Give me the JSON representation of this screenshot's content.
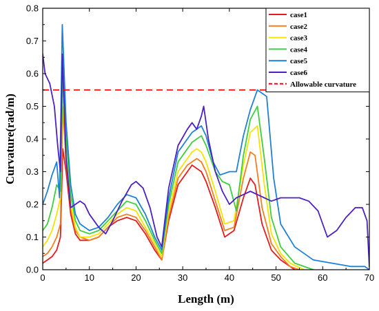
{
  "chart_data": {
    "type": "line",
    "xlabel": "Length (m)",
    "ylabel": "Curvature(rad/m)",
    "xlim": [
      0,
      70
    ],
    "ylim": [
      0,
      0.8
    ],
    "x_ticks": [
      0,
      10,
      20,
      30,
      40,
      50,
      60,
      70
    ],
    "y_ticks": [
      0.0,
      0.1,
      0.2,
      0.3,
      0.4,
      0.5,
      0.6,
      0.7,
      0.8
    ],
    "x_tick_labels": [
      "0",
      "10",
      "20",
      "30",
      "40",
      "50",
      "60",
      "70"
    ],
    "y_tick_labels": [
      "0.0",
      "0.1",
      "0.2",
      "0.3",
      "0.4",
      "0.5",
      "0.6",
      "0.7",
      "0.8"
    ],
    "grid": false,
    "legend_position": "top-right",
    "threshold": {
      "name": "Allowable curvature",
      "value": 0.55,
      "color": "#ff0000"
    },
    "series": [
      {
        "name": "case1",
        "color": "#e41a1c",
        "x": [
          0,
          1,
          2,
          3,
          3.8,
          4.3,
          5,
          6,
          7,
          8,
          10,
          12,
          14,
          16,
          18,
          20,
          22,
          24,
          25.5,
          27,
          29,
          31,
          32,
          33,
          34,
          35,
          37,
          39,
          41,
          43,
          44.5,
          45.5,
          47,
          49,
          51,
          53,
          54
        ],
        "y": [
          0.02,
          0.03,
          0.04,
          0.06,
          0.1,
          0.37,
          0.3,
          0.17,
          0.11,
          0.09,
          0.09,
          0.1,
          0.13,
          0.15,
          0.16,
          0.15,
          0.11,
          0.06,
          0.03,
          0.15,
          0.26,
          0.3,
          0.32,
          0.31,
          0.3,
          0.27,
          0.19,
          0.1,
          0.12,
          0.22,
          0.28,
          0.26,
          0.14,
          0.06,
          0.03,
          0.01,
          0
        ]
      },
      {
        "name": "case2",
        "color": "#f47d20",
        "x": [
          0,
          1,
          2,
          3,
          3.8,
          4.3,
          5,
          6,
          7,
          8,
          10,
          12,
          14,
          16,
          18,
          20,
          22,
          24,
          25.5,
          27,
          29,
          31,
          32,
          33,
          34,
          35,
          37,
          39,
          41,
          43,
          44.5,
          45.5,
          47,
          49,
          51,
          53,
          55
        ],
        "y": [
          0.04,
          0.05,
          0.07,
          0.1,
          0.14,
          0.5,
          0.33,
          0.19,
          0.12,
          0.1,
          0.09,
          0.1,
          0.13,
          0.16,
          0.17,
          0.16,
          0.12,
          0.07,
          0.03,
          0.16,
          0.28,
          0.32,
          0.33,
          0.34,
          0.33,
          0.3,
          0.21,
          0.12,
          0.13,
          0.28,
          0.36,
          0.35,
          0.19,
          0.08,
          0.04,
          0.01,
          0
        ]
      },
      {
        "name": "case3",
        "color": "#f5e400",
        "x": [
          0,
          1,
          2,
          3,
          3.8,
          4.3,
          5,
          6,
          7,
          8,
          10,
          12,
          14,
          16,
          18,
          20,
          22,
          24,
          25.5,
          27,
          29,
          31,
          32,
          33,
          34,
          35,
          37,
          39,
          41,
          43,
          44.5,
          46,
          47.5,
          49,
          51,
          53,
          56
        ],
        "y": [
          0.07,
          0.09,
          0.12,
          0.17,
          0.22,
          0.57,
          0.35,
          0.2,
          0.13,
          0.1,
          0.1,
          0.11,
          0.14,
          0.17,
          0.19,
          0.18,
          0.13,
          0.08,
          0.04,
          0.18,
          0.3,
          0.34,
          0.36,
          0.37,
          0.36,
          0.33,
          0.24,
          0.14,
          0.15,
          0.32,
          0.42,
          0.44,
          0.26,
          0.11,
          0.05,
          0.02,
          0
        ]
      },
      {
        "name": "case4",
        "color": "#3ccf3c",
        "x": [
          0,
          1,
          2,
          3,
          3.8,
          4.3,
          5,
          6,
          7,
          8,
          10,
          12,
          14,
          16,
          18,
          20,
          22,
          24,
          25.5,
          27,
          29,
          31,
          32,
          33,
          34,
          35,
          37,
          38.5,
          40,
          41.5,
          43,
          44.5,
          46,
          47.5,
          49,
          51,
          54,
          58
        ],
        "y": [
          0.12,
          0.14,
          0.19,
          0.26,
          0.24,
          0.6,
          0.4,
          0.23,
          0.15,
          0.12,
          0.11,
          0.12,
          0.15,
          0.18,
          0.21,
          0.2,
          0.15,
          0.09,
          0.05,
          0.2,
          0.33,
          0.37,
          0.39,
          0.4,
          0.41,
          0.38,
          0.3,
          0.27,
          0.26,
          0.18,
          0.35,
          0.46,
          0.5,
          0.34,
          0.16,
          0.07,
          0.02,
          0
        ]
      },
      {
        "name": "case5",
        "color": "#1f7fd6",
        "x": [
          0,
          1,
          2,
          3,
          3.6,
          4.2,
          5,
          6,
          7,
          8,
          10,
          12,
          14,
          16,
          18,
          20,
          22,
          24,
          25.5,
          27,
          29,
          31,
          32,
          33,
          34,
          35,
          36.5,
          38,
          40,
          41.5,
          43,
          44.5,
          46,
          47,
          48,
          49.5,
          51,
          54,
          58,
          62,
          66,
          69,
          70
        ],
        "y": [
          0.2,
          0.24,
          0.29,
          0.33,
          0.22,
          0.75,
          0.45,
          0.26,
          0.17,
          0.14,
          0.12,
          0.13,
          0.16,
          0.2,
          0.23,
          0.22,
          0.17,
          0.1,
          0.06,
          0.22,
          0.36,
          0.4,
          0.42,
          0.43,
          0.44,
          0.41,
          0.33,
          0.29,
          0.3,
          0.3,
          0.41,
          0.49,
          0.55,
          0.54,
          0.53,
          0.28,
          0.14,
          0.07,
          0.03,
          0.02,
          0.01,
          0.01,
          0
        ]
      },
      {
        "name": "case6",
        "color": "#4b1fc2",
        "x": [
          0,
          0.5,
          1.5,
          2.5,
          3.2,
          3.8,
          4.2,
          5,
          6,
          7,
          8,
          9,
          10,
          12,
          13.5,
          15,
          17,
          19,
          20,
          21.5,
          23,
          24.5,
          25.5,
          27,
          29,
          31,
          32,
          33,
          34,
          34.5,
          35.5,
          37,
          38.5,
          40,
          41.5,
          43,
          44.5,
          46,
          47.5,
          49,
          51,
          53,
          55,
          57,
          59,
          60,
          61,
          63,
          65,
          67,
          68.5,
          69.5,
          70
        ],
        "y": [
          0.66,
          0.6,
          0.57,
          0.5,
          0.38,
          0.3,
          0.66,
          0.34,
          0.19,
          0.2,
          0.21,
          0.2,
          0.17,
          0.13,
          0.11,
          0.15,
          0.21,
          0.26,
          0.27,
          0.25,
          0.19,
          0.1,
          0.07,
          0.25,
          0.38,
          0.43,
          0.45,
          0.43,
          0.47,
          0.5,
          0.4,
          0.3,
          0.24,
          0.2,
          0.22,
          0.23,
          0.24,
          0.23,
          0.22,
          0.21,
          0.22,
          0.22,
          0.22,
          0.21,
          0.18,
          0.14,
          0.1,
          0.12,
          0.16,
          0.19,
          0.19,
          0.15,
          0.01
        ]
      }
    ]
  }
}
